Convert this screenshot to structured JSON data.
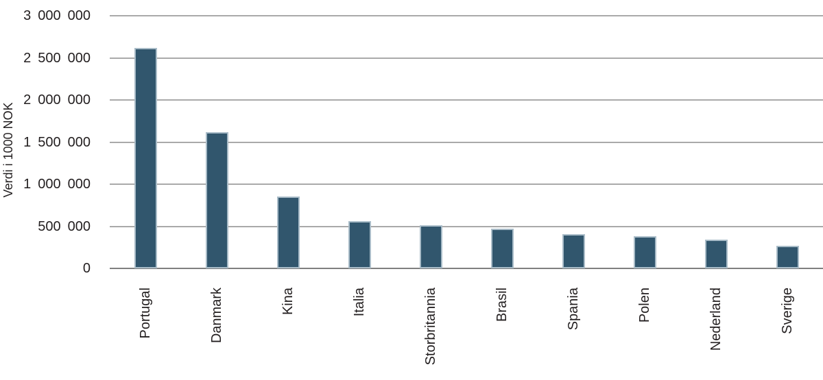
{
  "chart_data": {
    "type": "bar",
    "title": "",
    "xlabel": "",
    "ylabel": "Verdi i 1000 NOK",
    "categories": [
      "Portugal",
      "Danmark",
      "Kina",
      "Italia",
      "Storbritannia",
      "Brasil",
      "Spania",
      "Polen",
      "Nederland",
      "Sverige"
    ],
    "values": [
      2620000,
      1620000,
      855000,
      560000,
      510000,
      470000,
      405000,
      380000,
      340000,
      270000
    ],
    "ylim": [
      0,
      3000000
    ],
    "ytick_step": 500000,
    "ytick_labels": [
      "0",
      "500 000",
      "1 000 000",
      "1 500 000",
      "2 000 000",
      "2 500 000",
      "3 000 000"
    ],
    "grid": true,
    "legend": false,
    "colors": {
      "bar_fill": "#31566D",
      "bar_border": "#A9BCC8",
      "gridline": "#A9A9A9",
      "axis_line": "#7F7F7F",
      "text": "#221E1F"
    }
  }
}
